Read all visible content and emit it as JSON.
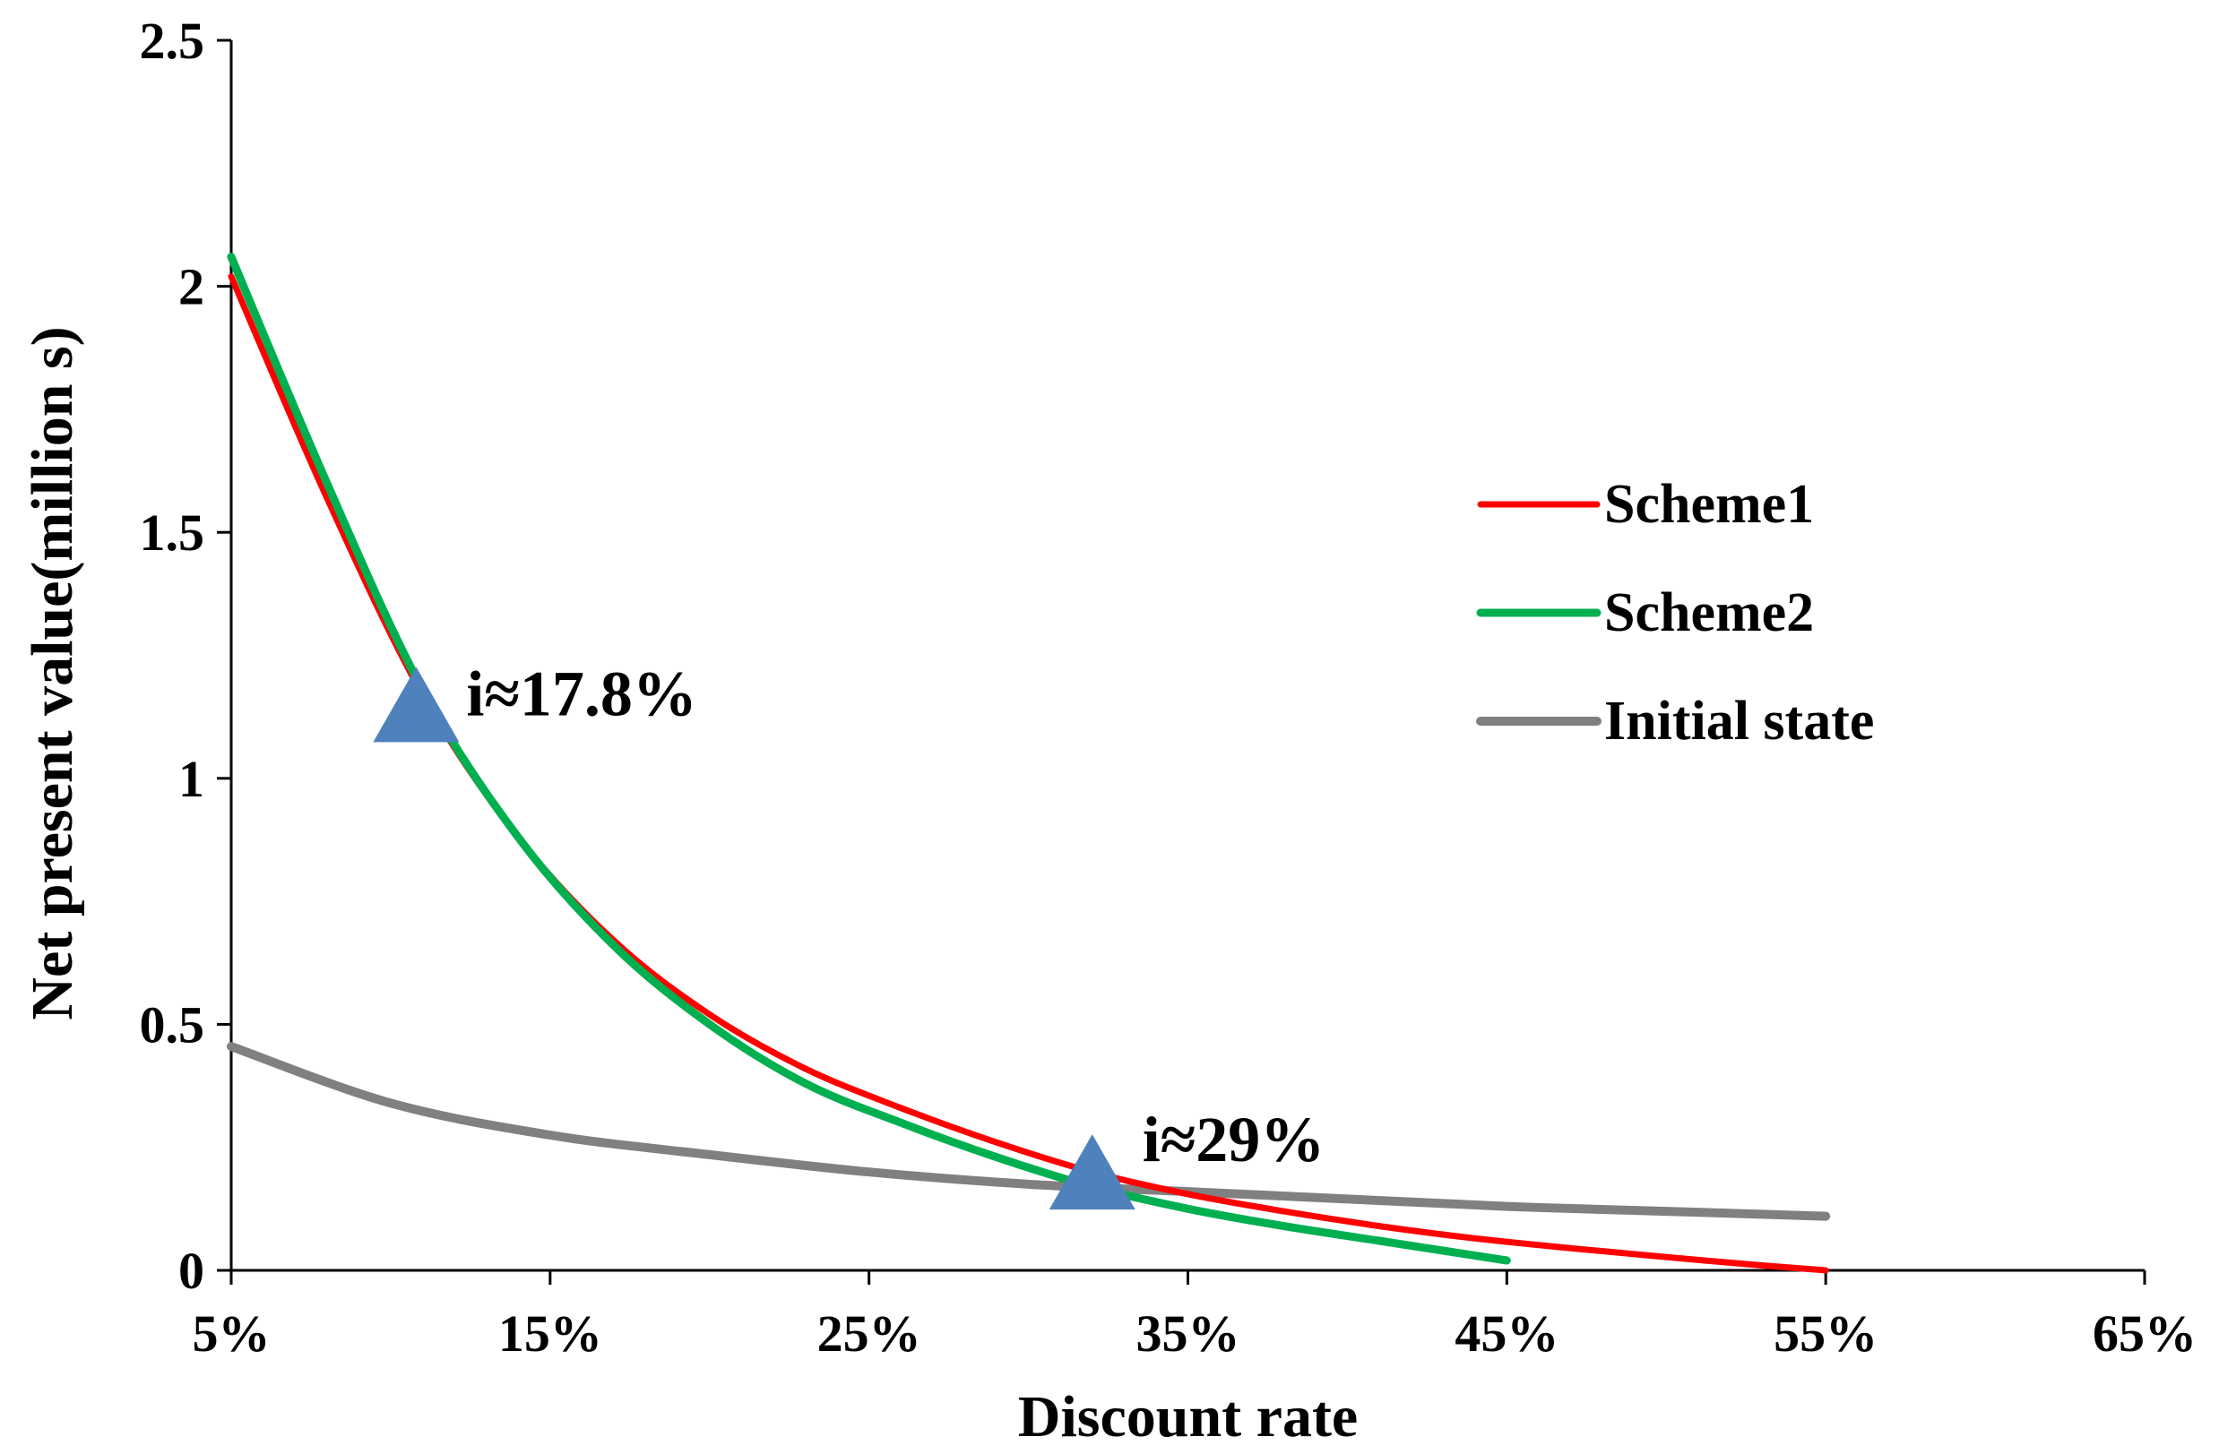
{
  "chart_data": {
    "type": "line",
    "title": "",
    "xlabel": "Discount rate",
    "ylabel": "Net present value(million s)",
    "xlim": [
      5,
      65
    ],
    "ylim": [
      0,
      2.5
    ],
    "x_ticks": [
      5,
      15,
      25,
      35,
      45,
      55,
      65
    ],
    "x_tick_labels": [
      "5%",
      "15%",
      "25%",
      "35%",
      "45%",
      "55%",
      "65%"
    ],
    "y_ticks": [
      0,
      0.5,
      1,
      1.5,
      2,
      2.5
    ],
    "y_tick_labels": [
      "0",
      "0.5",
      "1",
      "1.5",
      "2",
      "2.5"
    ],
    "grid": false,
    "legend_position": "right",
    "series": [
      {
        "name": "Scheme1",
        "color": "#ff0000",
        "x": [
          5,
          8,
          11,
          14,
          17,
          20,
          23,
          26,
          29,
          32,
          35,
          38,
          41,
          44,
          47,
          50,
          53,
          55
        ],
        "y": [
          2.02,
          1.57,
          1.17,
          0.88,
          0.67,
          0.52,
          0.41,
          0.33,
          0.26,
          0.2,
          0.155,
          0.12,
          0.09,
          0.065,
          0.045,
          0.027,
          0.01,
          0.0
        ]
      },
      {
        "name": "Scheme2",
        "color": "#00b050",
        "x": [
          5,
          8,
          11,
          14,
          17,
          20,
          23,
          26,
          29,
          32,
          35,
          38,
          41,
          43,
          45
        ],
        "y": [
          2.06,
          1.6,
          1.18,
          0.88,
          0.66,
          0.5,
          0.38,
          0.3,
          0.23,
          0.17,
          0.125,
          0.09,
          0.06,
          0.04,
          0.02
        ]
      },
      {
        "name": "Initial state",
        "color": "#808080",
        "x": [
          5,
          10,
          15,
          20,
          25,
          30,
          35,
          40,
          45,
          50,
          55
        ],
        "y": [
          0.455,
          0.34,
          0.275,
          0.235,
          0.2,
          0.175,
          0.16,
          0.145,
          0.13,
          0.12,
          0.11
        ]
      }
    ],
    "annotations": [
      {
        "label": "i≈17.8%",
        "x": 10.8,
        "y": 1.15,
        "marker": "triangle",
        "color": "#4f81bd"
      },
      {
        "label": "i≈29%",
        "x": 32,
        "y": 0.2,
        "marker": "triangle",
        "color": "#4f81bd"
      }
    ]
  }
}
